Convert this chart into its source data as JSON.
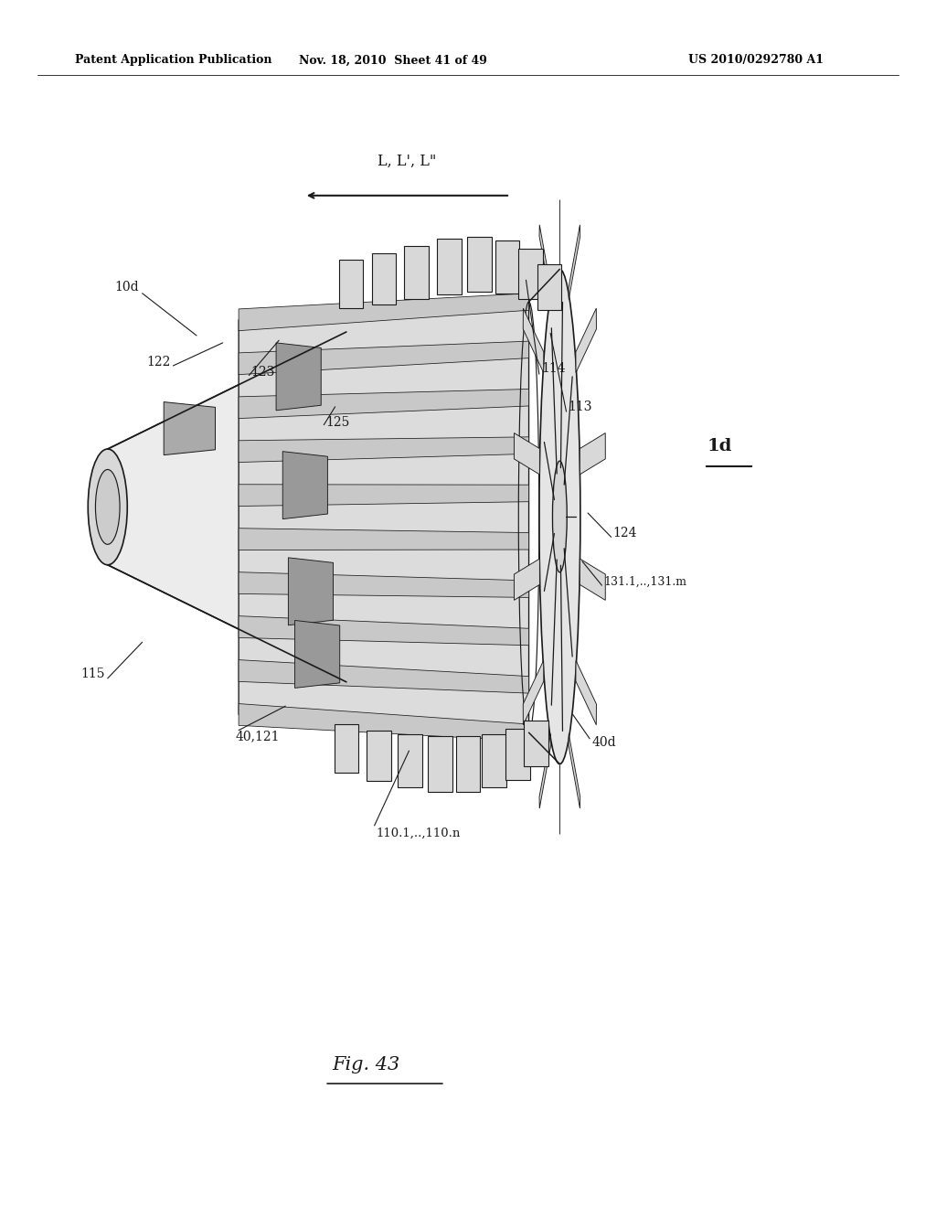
{
  "bg_color": "#ffffff",
  "header_left": "Patent Application Publication",
  "header_mid": "Nov. 18, 2010  Sheet 41 of 49",
  "header_right": "US 2010/0292780 A1",
  "fig_label": "Fig. 43",
  "diagram_label": "1d",
  "arrow_label": "L, L', L\"",
  "dark": "#1a1a1a"
}
